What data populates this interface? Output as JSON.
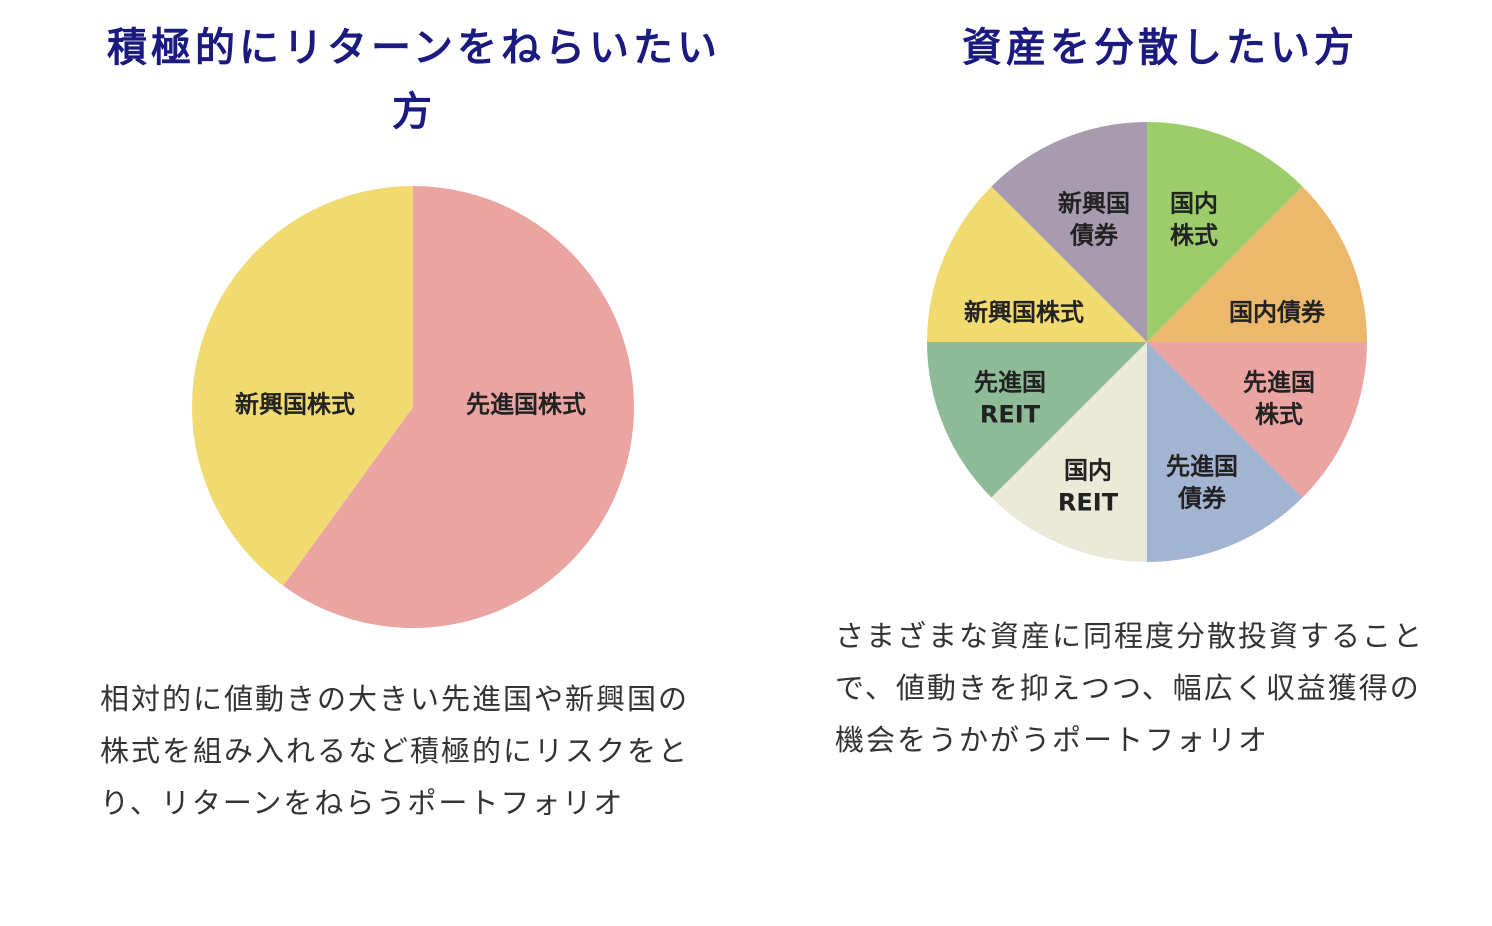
{
  "left": {
    "title": "積極的にリターンをねらいたい方",
    "description": "相対的に値動きの大きい先進国や新興国の株式を組み入れるなど積極的にリスクをとり、リターンをねらうポートフォリオ"
  },
  "right": {
    "title": "資産を分散したい方",
    "description": "さまざまな資産に同程度分散投資することで、値動きを抑えつつ、幅広く収益獲得の機会をうかがうポートフォリオ"
  },
  "chart_data": [
    {
      "type": "pie",
      "title": "積極的にリターンをねらいたい方",
      "start": "top",
      "direction": "clockwise",
      "slices": [
        {
          "label": "先進国株式",
          "value": 60,
          "color": "#eaa4a2"
        },
        {
          "label": "新興国株式",
          "value": 40,
          "color": "#f1db70"
        }
      ]
    },
    {
      "type": "pie",
      "title": "資産を分散したい方",
      "start": "top",
      "direction": "clockwise",
      "slices": [
        {
          "label": "国内株式",
          "value": 12.5,
          "color": "#9ccd6a"
        },
        {
          "label": "国内債券",
          "value": 12.5,
          "color": "#ebb86c"
        },
        {
          "label": "先進国株式",
          "value": 12.5,
          "color": "#eaa4a2"
        },
        {
          "label": "先進国債券",
          "value": 12.5,
          "color": "#a2b4d1"
        },
        {
          "label": "国内REIT",
          "value": 12.5,
          "color": "#ebe9d8"
        },
        {
          "label": "先進国REIT",
          "value": 12.5,
          "color": "#8dbb97"
        },
        {
          "label": "新興国株式",
          "value": 12.5,
          "color": "#f1db70"
        },
        {
          "label": "新興国債券",
          "value": 12.5,
          "color": "#a89bb0"
        }
      ]
    }
  ]
}
